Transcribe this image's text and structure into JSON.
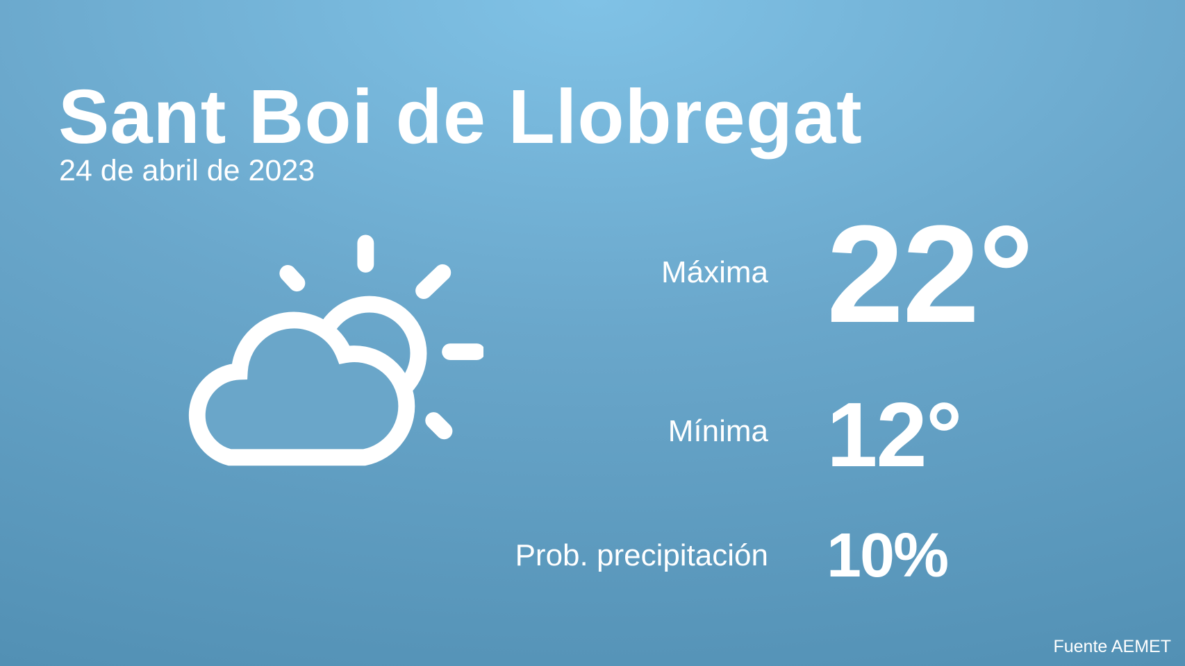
{
  "location": "Sant Boi de Llobregat",
  "date": "24 de abril de 2023",
  "icon": "partly-cloudy-icon",
  "max": {
    "label": "Máxima",
    "value": "22°"
  },
  "min": {
    "label": "Mínima",
    "value": "12°"
  },
  "precip": {
    "label": "Prob. precipitación",
    "value": "10%"
  },
  "source": "Fuente AEMET",
  "colors": {
    "background_top": "#80c2e6",
    "background_bottom": "#5290b4",
    "text": "#ffffff"
  }
}
